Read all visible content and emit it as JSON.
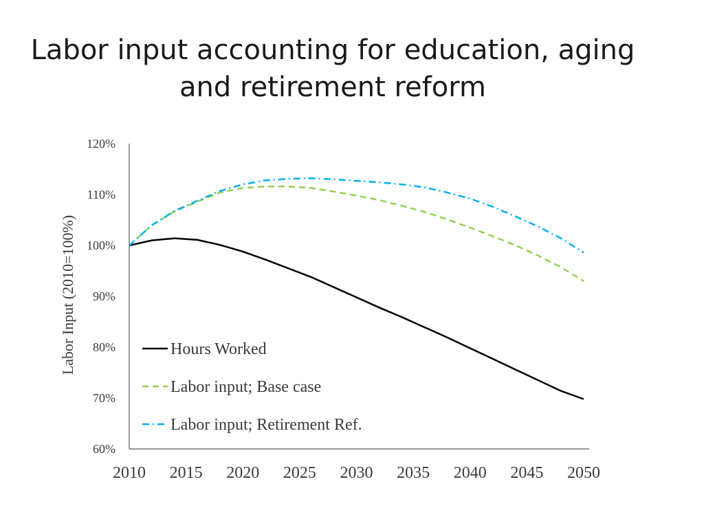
{
  "slide": {
    "title_line1": "Labor input accounting for education, aging",
    "title_line2": "and retirement reform"
  },
  "chart_data": {
    "type": "line",
    "title": "Labor input accounting for education, aging and retirement reform",
    "xlabel": "",
    "ylabel": "Labor Input (2010=100%)",
    "xlim": [
      2010,
      2050
    ],
    "ylim": [
      60,
      120
    ],
    "x_ticks": [
      2010,
      2015,
      2020,
      2025,
      2030,
      2035,
      2040,
      2045,
      2050
    ],
    "y_ticks": [
      60,
      70,
      80,
      90,
      100,
      110,
      120
    ],
    "y_tick_labels": [
      "60%",
      "70%",
      "80%",
      "90%",
      "100%",
      "110%",
      "120%"
    ],
    "grid": false,
    "legend_position": "bottom-left",
    "x": [
      2010,
      2012,
      2014,
      2016,
      2018,
      2020,
      2022,
      2024,
      2026,
      2028,
      2030,
      2032,
      2034,
      2036,
      2038,
      2040,
      2042,
      2044,
      2046,
      2048,
      2050
    ],
    "series": [
      {
        "name": "Hours Worked",
        "style": "solid",
        "color": "#000000",
        "values": [
          100.0,
          101.0,
          101.4,
          101.1,
          100.1,
          98.8,
          97.2,
          95.5,
          93.8,
          91.8,
          89.8,
          87.8,
          85.9,
          83.9,
          81.9,
          79.8,
          77.7,
          75.6,
          73.5,
          71.4,
          69.8
        ]
      },
      {
        "name": "Labor input; Base case",
        "style": "dashed",
        "color": "#92d050",
        "values": [
          100.0,
          104.0,
          106.7,
          108.6,
          110.4,
          111.3,
          111.6,
          111.6,
          111.3,
          110.6,
          109.8,
          108.9,
          107.8,
          106.6,
          105.1,
          103.5,
          101.8,
          100.0,
          98.0,
          95.7,
          93.0
        ]
      },
      {
        "name": "Labor input; Retirement Ref.",
        "style": "dash-dot",
        "color": "#00b0f0",
        "values": [
          100.0,
          104.0,
          106.8,
          108.8,
          110.7,
          112.0,
          112.8,
          113.1,
          113.2,
          113.0,
          112.7,
          112.4,
          112.0,
          111.4,
          110.4,
          109.2,
          107.6,
          105.7,
          103.7,
          101.4,
          98.6
        ]
      }
    ]
  }
}
